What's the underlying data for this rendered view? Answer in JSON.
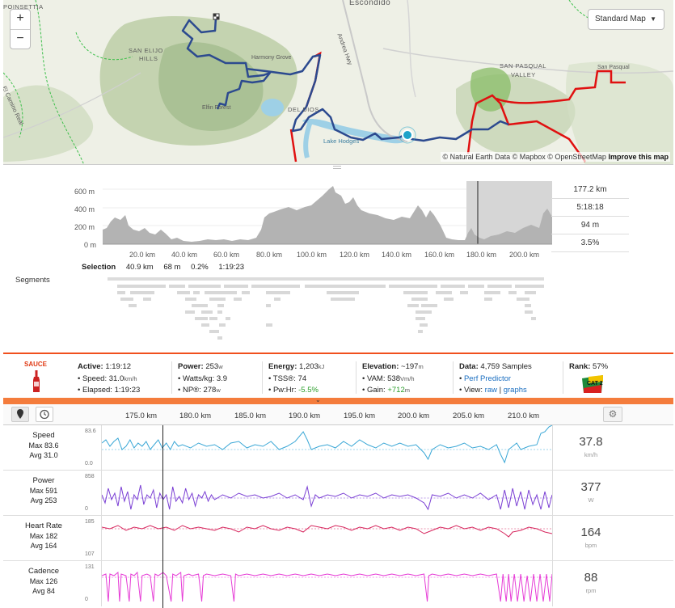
{
  "map": {
    "labels": {
      "poinsettia": "POINSETTIA",
      "escondido": "Escondido",
      "san_elijo_1": "SAN ELIJO",
      "san_elijo_2": "HILLS",
      "san_pasqual_1": "SAN PASQUAL",
      "san_pasqual_2": "VALLEY",
      "harmony_grove": "Harmony Grove",
      "elfin_forest": "Elfin Forest",
      "del_dios": "DEL DIOS",
      "lake_hodges": "Lake Hodges",
      "el_camino_real": "El Camino Real",
      "hwy": "Andrea Hwy",
      "san_pasqual_small": "San Pasqual"
    },
    "zoom_in": "+",
    "zoom_out": "−",
    "style_select": "Standard Map",
    "attribution_prefix": "© Natural Earth Data © Mapbox © OpenStreetMap",
    "attribution_link": "Improve this map",
    "colors": {
      "route": "#2c4a8f",
      "highlight": "#e01010",
      "terrain": "#b7c9a3",
      "water": "#9ed0e6"
    }
  },
  "elevation": {
    "y_ticks": [
      "600 m",
      "400 m",
      "200 m",
      "0 m"
    ],
    "x_ticks": [
      "20.0 km",
      "40.0 km",
      "60.0 km",
      "80.0 km",
      "100.0 km",
      "120.0 km",
      "140.0 km",
      "160.0 km",
      "180.0 km",
      "200.0 km"
    ],
    "stats": [
      "177.2 km",
      "5:18:18",
      "94 m",
      "3.5%"
    ],
    "selection_label": "Selection",
    "selection_values": [
      "40.9 km",
      "68 m",
      "0.2%",
      "1:19:23"
    ],
    "segments_label": "Segments"
  },
  "sauce": {
    "logo": "SAUCE",
    "active": {
      "label": "Active:",
      "value": "1:19:12"
    },
    "speed": {
      "label": "Speed:",
      "value": "31.0",
      "unit": "km/h"
    },
    "elapsed": {
      "label": "Elapsed:",
      "value": "1:19:23"
    },
    "power": {
      "label": "Power:",
      "value": "253",
      "unit": "w"
    },
    "watts_kg": {
      "label": "Watts/kg:",
      "value": "3.9"
    },
    "np": {
      "label": "NP®:",
      "value": "278",
      "unit": "w"
    },
    "energy": {
      "label": "Energy:",
      "value": "1,203",
      "unit": "kJ"
    },
    "tss": {
      "label": "TSS®:",
      "value": "74"
    },
    "pwhr": {
      "label": "Pw:Hr:",
      "value": "-5.5%"
    },
    "elevation": {
      "label": "Elevation:",
      "value": "~197",
      "unit": "m"
    },
    "vam": {
      "label": "VAM:",
      "value": "538",
      "unit": "Vm/h"
    },
    "gain": {
      "label": "Gain:",
      "value": "+712",
      "unit": "m"
    },
    "data": {
      "label": "Data:",
      "value": "4,759 Samples"
    },
    "perf": "Perf Predictor",
    "view_label": "View:",
    "view_raw": "raw",
    "view_graphs": "graphs",
    "rank": {
      "label": "Rank:",
      "value": "57%"
    },
    "rank_badge": "CAT 2",
    "collapse": "⌄"
  },
  "streams": {
    "top_ticks": [
      "175.0 km",
      "180.0 km",
      "185.0 km",
      "190.0 km",
      "195.0 km",
      "200.0 km",
      "205.0 km",
      "210.0 km"
    ],
    "rows": [
      {
        "title": "Speed",
        "max": "Max 83.6",
        "avg": "Avg 31.0",
        "axis_top": "83.6",
        "axis_bot": "0.0",
        "value": "37.8",
        "unit": "km/h",
        "color": "#3aa7d6"
      },
      {
        "title": "Power",
        "max": "Max 591",
        "avg": "Avg 253",
        "axis_top": "858",
        "axis_bot": "0",
        "value": "377",
        "unit": "W",
        "color": "#7a3fd4"
      },
      {
        "title": "Heart Rate",
        "max": "Max 182",
        "avg": "Avg 164",
        "axis_top": "185",
        "axis_bot": "107",
        "value": "164",
        "unit": "bpm",
        "color": "#d6245c"
      },
      {
        "title": "Cadence",
        "max": "Max 126",
        "avg": "Avg 84",
        "axis_top": "131",
        "axis_bot": "0",
        "value": "88",
        "unit": "rpm",
        "color": "#e63ad6"
      }
    ]
  }
}
